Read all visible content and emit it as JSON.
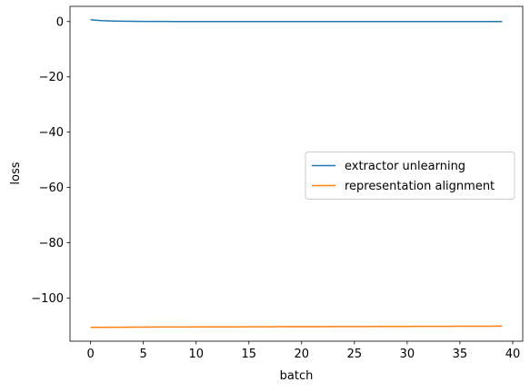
{
  "chart_data": {
    "type": "line",
    "title": "",
    "xlabel": "batch",
    "ylabel": "loss",
    "xlim": [
      -1.95,
      40.95
    ],
    "ylim": [
      -115.6,
      5.5
    ],
    "xticks": [
      0,
      5,
      10,
      15,
      20,
      25,
      30,
      35,
      40
    ],
    "yticks": [
      0,
      -20,
      -40,
      -60,
      -80,
      -100
    ],
    "ytick_labels": [
      "0",
      "−20",
      "−40",
      "−60",
      "−80",
      "−100"
    ],
    "grid": false,
    "legend": "center-right",
    "series": [
      {
        "name": "extractor unlearning",
        "color": "#1f77b4",
        "x": [
          0,
          1,
          2,
          3,
          4,
          5,
          6,
          7,
          8,
          9,
          10,
          11,
          12,
          13,
          14,
          15,
          16,
          17,
          18,
          19,
          20,
          21,
          22,
          23,
          24,
          25,
          26,
          27,
          28,
          29,
          30,
          31,
          32,
          33,
          34,
          35,
          36,
          37,
          38,
          39
        ],
        "y": [
          0.65,
          0.35,
          0.2,
          0.12,
          0.08,
          0.05,
          0.04,
          0.03,
          0.02,
          0.02,
          0.01,
          0.01,
          0.01,
          0.01,
          0.01,
          0.0,
          0.0,
          0.0,
          0.0,
          0.0,
          0.0,
          0.0,
          0.0,
          0.0,
          0.0,
          0.0,
          0.0,
          0.0,
          0.0,
          0.0,
          0.0,
          0.0,
          0.0,
          0.0,
          0.0,
          0.0,
          0.0,
          0.0,
          0.0,
          0.0
        ]
      },
      {
        "name": "representation alignment",
        "color": "#ff7f0e",
        "x": [
          0,
          1,
          2,
          3,
          4,
          5,
          6,
          7,
          8,
          9,
          10,
          11,
          12,
          13,
          14,
          15,
          16,
          17,
          18,
          19,
          20,
          21,
          22,
          23,
          24,
          25,
          26,
          27,
          28,
          29,
          30,
          31,
          32,
          33,
          34,
          35,
          36,
          37,
          38,
          39
        ],
        "y": [
          -110.6,
          -110.58,
          -110.56,
          -110.54,
          -110.52,
          -110.5,
          -110.49,
          -110.48,
          -110.47,
          -110.46,
          -110.45,
          -110.44,
          -110.43,
          -110.42,
          -110.41,
          -110.4,
          -110.39,
          -110.38,
          -110.37,
          -110.36,
          -110.35,
          -110.34,
          -110.33,
          -110.32,
          -110.31,
          -110.3,
          -110.29,
          -110.28,
          -110.27,
          -110.26,
          -110.25,
          -110.24,
          -110.23,
          -110.22,
          -110.21,
          -110.2,
          -110.19,
          -110.18,
          -110.17,
          -110.16
        ]
      }
    ]
  }
}
